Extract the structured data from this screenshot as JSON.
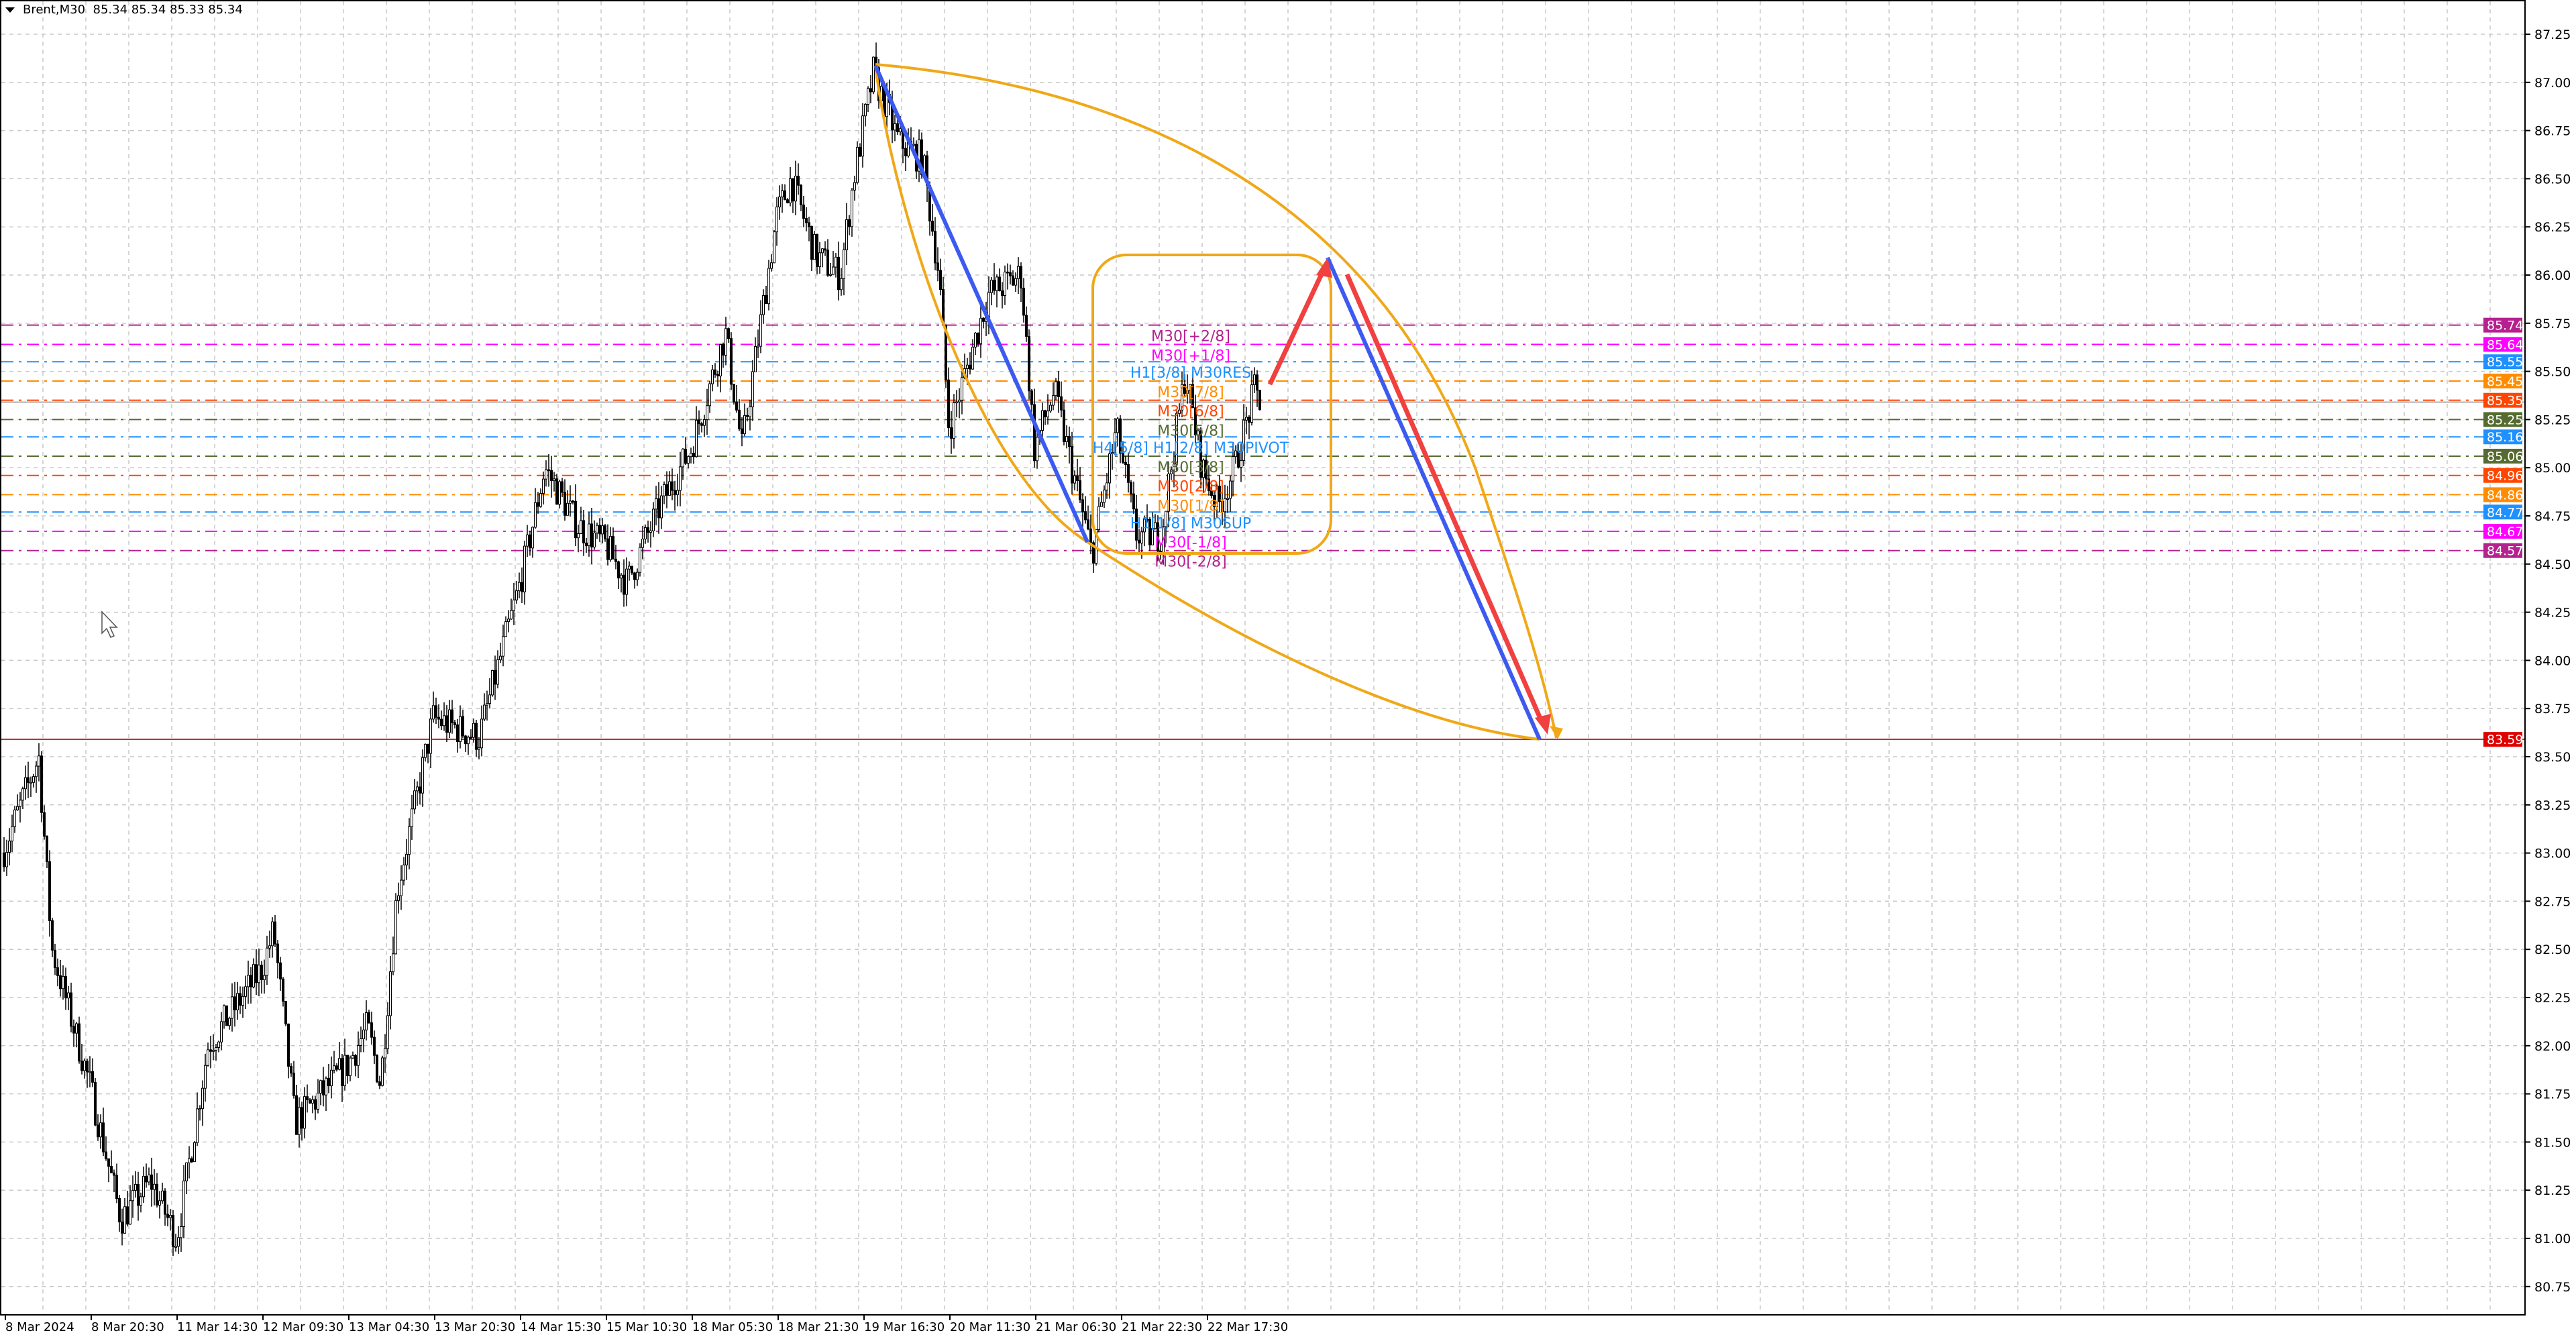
{
  "header": {
    "symbol": "Brent,M30",
    "ohlc": "85.34 85.34 85.33 85.34"
  },
  "chart_data": {
    "type": "candlestick",
    "title": "Brent,M30",
    "ylim": [
      80.65,
      87.35
    ],
    "yticks": [
      "87.25",
      "87.00",
      "86.75",
      "86.50",
      "86.25",
      "86.00",
      "85.75",
      "85.50",
      "85.25",
      "85.00",
      "84.75",
      "84.50",
      "84.25",
      "84.00",
      "83.75",
      "83.50",
      "83.25",
      "83.00",
      "82.75",
      "82.50",
      "82.25",
      "82.00",
      "81.75",
      "81.50",
      "81.25",
      "81.00",
      "80.75"
    ],
    "xticks": [
      "8 Mar 2024",
      "8 Mar 20:30",
      "11 Mar 14:30",
      "12 Mar 09:30",
      "13 Mar 04:30",
      "13 Mar 20:30",
      "14 Mar 15:30",
      "15 Mar 10:30",
      "18 Mar 05:30",
      "18 Mar 21:30",
      "19 Mar 16:30",
      "20 Mar 11:30",
      "21 Mar 06:30",
      "21 Mar 22:30",
      "22 Mar 17:30"
    ],
    "grid": true,
    "price_path": [
      {
        "t": "8 Mar 2024",
        "p": 83.0
      },
      {
        "t": "8 Mar 06:00",
        "p": 83.5
      },
      {
        "t": "8 Mar 09:00",
        "p": 82.5
      },
      {
        "t": "8 Mar 20:30",
        "p": 81.8
      },
      {
        "t": "11 Mar 02:00",
        "p": 81.1
      },
      {
        "t": "11 Mar 09:00",
        "p": 81.3
      },
      {
        "t": "11 Mar 14:30",
        "p": 81.0
      },
      {
        "t": "11 Mar 20:00",
        "p": 82.0
      },
      {
        "t": "12 Mar 09:30",
        "p": 82.4
      },
      {
        "t": "12 Mar 13:00",
        "p": 82.6
      },
      {
        "t": "12 Mar 17:00",
        "p": 81.6
      },
      {
        "t": "13 Mar 04:30",
        "p": 81.9
      },
      {
        "t": "13 Mar 12:00",
        "p": 82.1
      },
      {
        "t": "13 Mar 15:00",
        "p": 81.8
      },
      {
        "t": "13 Mar 18:00",
        "p": 82.8
      },
      {
        "t": "13 Mar 20:30",
        "p": 83.7
      },
      {
        "t": "14 Mar 10:00",
        "p": 83.6
      },
      {
        "t": "14 Mar 15:30",
        "p": 84.4
      },
      {
        "t": "15 Mar 00:00",
        "p": 85.0
      },
      {
        "t": "15 Mar 04:30",
        "p": 84.7
      },
      {
        "t": "15 Mar 10:30",
        "p": 84.6
      },
      {
        "t": "15 Mar 14:00",
        "p": 84.4
      },
      {
        "t": "15 Mar 20:00",
        "p": 84.8
      },
      {
        "t": "18 Mar 05:30",
        "p": 85.1
      },
      {
        "t": "18 Mar 12:00",
        "p": 85.7
      },
      {
        "t": "18 Mar 16:00",
        "p": 85.1
      },
      {
        "t": "18 Mar 21:30",
        "p": 86.3
      },
      {
        "t": "19 Mar 03:00",
        "p": 86.5
      },
      {
        "t": "19 Mar 08:00",
        "p": 86.1
      },
      {
        "t": "19 Mar 12:00",
        "p": 86.0
      },
      {
        "t": "19 Mar 14:00",
        "p": 86.5
      },
      {
        "t": "19 Mar 16:30",
        "p": 87.05
      },
      {
        "t": "19 Mar 20:00",
        "p": 86.7
      },
      {
        "t": "20 Mar 04:00",
        "p": 86.6
      },
      {
        "t": "20 Mar 07:00",
        "p": 86.0
      },
      {
        "t": "20 Mar 11:30",
        "p": 85.2
      },
      {
        "t": "20 Mar 16:00",
        "p": 85.9
      },
      {
        "t": "20 Mar 20:00",
        "p": 86.0
      },
      {
        "t": "21 Mar 01:00",
        "p": 85.4
      },
      {
        "t": "21 Mar 06:30",
        "p": 85.1
      },
      {
        "t": "21 Mar 09:00",
        "p": 84.55
      },
      {
        "t": "21 Mar 13:00",
        "p": 85.2
      },
      {
        "t": "21 Mar 16:00",
        "p": 84.65
      },
      {
        "t": "21 Mar 20:00",
        "p": 84.65
      },
      {
        "t": "21 Mar 22:30",
        "p": 85.5
      },
      {
        "t": "22 Mar 03:00",
        "p": 85.0
      },
      {
        "t": "22 Mar 08:00",
        "p": 84.8
      },
      {
        "t": "22 Mar 12:00",
        "p": 85.0
      },
      {
        "t": "22 Mar 17:30",
        "p": 85.4
      },
      {
        "t": "22 Mar 19:00",
        "p": 85.34
      }
    ],
    "current_price": 85.34,
    "target_line": {
      "price": "83.59",
      "color": "#e00000"
    },
    "levels": [
      {
        "price": "85.74",
        "label": "M30[+2/8]",
        "color": "#b5218f"
      },
      {
        "price": "85.64",
        "label": "M30[+1/8]",
        "color": "#ff00ff"
      },
      {
        "price": "85.55",
        "label": "H1[3/8] M30RES",
        "color": "#1e90ff"
      },
      {
        "price": "85.45",
        "label": "M30[7/8]",
        "color": "#ff8c00"
      },
      {
        "price": "85.35",
        "label": "M30[6/8]",
        "color": "#ff4500"
      },
      {
        "price": "85.25",
        "label": "M30[5/8]",
        "color": "#556b2f"
      },
      {
        "price": "85.16",
        "label": "H4[5/8] H1[2/8] M30PIVOT",
        "color": "#1e90ff"
      },
      {
        "price": "85.06",
        "label": "M30[3/8]",
        "color": "#556b2f"
      },
      {
        "price": "84.96",
        "label": "M30[2/8]",
        "color": "#ff4500"
      },
      {
        "price": "84.86",
        "label": "M30[1/8]",
        "color": "#ff8c00"
      },
      {
        "price": "84.77",
        "label": "H1[1/8] M30SUP",
        "color": "#1e90ff"
      },
      {
        "price": "84.67",
        "label": "M30[-1/8]",
        "color": "#ff00ff"
      },
      {
        "price": "84.57",
        "label": "M30[-2/8]",
        "color": "#b5218f"
      }
    ],
    "drawing_colors": {
      "arc": "#f0a818",
      "trend_blue": "#3d5af0",
      "arrow_red": "#f04040",
      "box": "#f0a818"
    }
  }
}
